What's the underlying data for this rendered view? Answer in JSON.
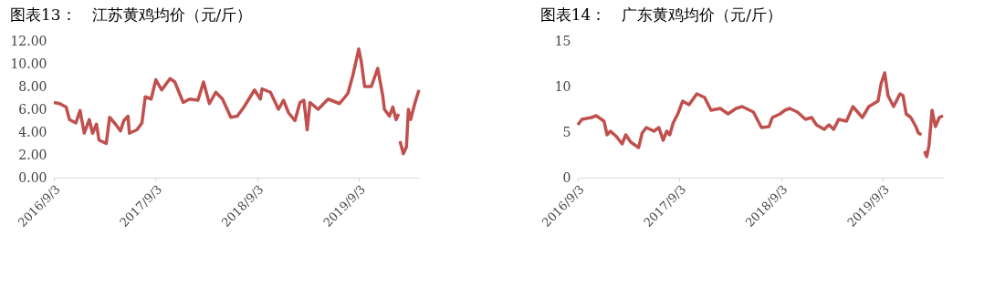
{
  "chart_data": [
    {
      "type": "line",
      "title": "图表13：　江苏黄鸡均价（元/斤）",
      "x": [
        "2016-09-03",
        "2016-09-24",
        "2016-10-17",
        "2016-10-29",
        "2016-11-21",
        "2016-12-06",
        "2016-12-21",
        "2017-01-08",
        "2017-01-20",
        "2017-02-03",
        "2017-02-12",
        "2017-03-10",
        "2017-03-22",
        "2017-04-12",
        "2017-04-30",
        "2017-05-12",
        "2017-05-27",
        "2017-06-01",
        "2017-06-28",
        "2017-07-16",
        "2017-07-28",
        "2017-08-18",
        "2017-09-04",
        "2017-09-25",
        "2017-10-25",
        "2017-11-11",
        "2017-12-11",
        "2018-01-03",
        "2018-02-02",
        "2018-02-22",
        "2018-03-15",
        "2018-04-07",
        "2018-05-01",
        "2018-05-31",
        "2018-06-23",
        "2018-07-17",
        "2018-08-24",
        "2018-09-14",
        "2018-09-20",
        "2018-10-20",
        "2018-11-18",
        "2018-12-06",
        "2018-12-24",
        "2019-01-16",
        "2019-02-03",
        "2019-02-17",
        "2019-03-01",
        "2019-03-11",
        "2019-04-09",
        "2019-05-15",
        "2019-06-25",
        "2019-07-25",
        "2019-08-12",
        "2019-09-02",
        "2019-09-11",
        "2019-09-23",
        "2019-10-17",
        "2019-11-09",
        "2019-11-27",
        "2019-12-03",
        "2019-12-21",
        "2020-01-02",
        "2020-01-14",
        "2020-01-23",
        "2020-01-25",
        "2020-01-28",
        "2020-02-09",
        "2020-02-20",
        "2020-02-27",
        "2020-03-06",
        "2020-03-22",
        "2020-04-05"
      ],
      "series": [
        {
          "color": "#c0504d",
          "values": [
            6.6,
            6.5,
            6.2,
            5.1,
            4.8,
            5.9,
            3.9,
            5.1,
            3.9,
            4.7,
            3.3,
            3.0,
            5.3,
            4.7,
            4.1,
            5.0,
            5.4,
            3.9,
            4.2,
            4.8,
            7.1,
            6.9,
            8.6,
            7.7,
            8.7,
            8.4,
            6.6,
            6.9,
            6.8,
            8.4,
            6.5,
            7.5,
            6.9,
            5.3,
            5.4,
            6.2,
            7.7,
            6.9,
            7.8,
            7.5,
            6.0,
            6.8,
            5.7,
            5.0,
            6.6,
            6.8,
            4.2,
            6.6,
            6.0,
            6.9,
            6.5,
            7.4,
            9.0,
            11.3,
            10.2,
            8.0,
            8.0,
            9.6,
            7.2,
            6.0,
            5.4,
            6.2,
            5.1,
            5.6,
            null,
            3.2,
            2.1,
            2.7,
            6.0,
            5.1,
            6.6,
            7.7
          ]
        }
      ],
      "xlim": [
        "2016-09-03",
        "2020-04-05"
      ],
      "xticks": [
        {
          "value": "2016-09-03",
          "label": "2016/9/3"
        },
        {
          "value": "2017-09-03",
          "label": "2017/9/3"
        },
        {
          "value": "2018-09-03",
          "label": "2018/9/3"
        },
        {
          "value": "2019-09-03",
          "label": "2019/9/3"
        }
      ],
      "ylim": [
        0,
        12
      ],
      "yticks": [
        {
          "value": 0,
          "label": "0.00"
        },
        {
          "value": 2,
          "label": "2.00"
        },
        {
          "value": 4,
          "label": "4.00"
        },
        {
          "value": 6,
          "label": "6.00"
        },
        {
          "value": 8,
          "label": "8.00"
        },
        {
          "value": 10,
          "label": "10.00"
        },
        {
          "value": 12,
          "label": "12.00"
        }
      ],
      "grid": false,
      "legend": false,
      "line_style": "solid"
    },
    {
      "type": "line",
      "title": "图表14：　广东黄鸡均价（元/斤）",
      "x": [
        "2016-09-03",
        "2016-09-18",
        "2016-10-22",
        "2016-11-08",
        "2016-12-06",
        "2016-12-17",
        "2016-12-29",
        "2017-01-20",
        "2017-02-09",
        "2017-02-22",
        "2017-03-12",
        "2017-04-09",
        "2017-04-22",
        "2017-05-07",
        "2017-06-03",
        "2017-06-21",
        "2017-07-06",
        "2017-07-19",
        "2017-07-30",
        "2017-08-11",
        "2017-08-28",
        "2017-09-14",
        "2017-10-07",
        "2017-11-04",
        "2017-12-02",
        "2017-12-25",
        "2018-01-27",
        "2018-02-24",
        "2018-03-25",
        "2018-04-16",
        "2018-05-26",
        "2018-06-24",
        "2018-07-21",
        "2018-08-02",
        "2018-08-30",
        "2018-09-16",
        "2018-10-03",
        "2018-10-31",
        "2018-11-29",
        "2018-12-21",
        "2019-01-07",
        "2019-02-04",
        "2019-02-21",
        "2019-03-10",
        "2019-03-28",
        "2019-04-25",
        "2019-05-18",
        "2019-06-21",
        "2019-07-14",
        "2019-08-16",
        "2019-08-27",
        "2019-09-09",
        "2019-09-21",
        "2019-10-11",
        "2019-11-03",
        "2019-11-14",
        "2019-11-25",
        "2019-12-12",
        "2019-12-30",
        "2020-01-08",
        "2020-01-19",
        "2020-01-25",
        "2020-01-30",
        "2020-02-07",
        "2020-02-15",
        "2020-02-26",
        "2020-03-09",
        "2020-03-23",
        "2020-04-05"
      ],
      "series": [
        {
          "color": "#c0504d",
          "values": [
            5.8,
            6.4,
            6.6,
            6.8,
            6.2,
            4.7,
            5.1,
            4.5,
            3.7,
            4.7,
            3.9,
            3.3,
            4.9,
            5.5,
            5.1,
            5.5,
            4.1,
            5.1,
            4.7,
            6.0,
            7.0,
            8.4,
            8.0,
            9.2,
            8.8,
            7.4,
            7.6,
            7.0,
            7.6,
            7.8,
            7.2,
            5.5,
            5.6,
            6.6,
            7.0,
            7.4,
            7.6,
            7.2,
            6.4,
            6.6,
            5.8,
            5.3,
            5.8,
            5.3,
            6.4,
            6.2,
            7.8,
            6.6,
            7.8,
            8.4,
            10.3,
            11.5,
            9.0,
            7.8,
            9.2,
            9.0,
            7.0,
            6.6,
            5.6,
            4.9,
            4.7,
            null,
            2.9,
            2.3,
            3.5,
            7.4,
            5.6,
            6.6,
            6.8
          ]
        }
      ],
      "xlim": [
        "2016-09-03",
        "2020-04-05"
      ],
      "xticks": [
        {
          "value": "2016-09-03",
          "label": "2016/9/3"
        },
        {
          "value": "2017-09-03",
          "label": "2017/9/3"
        },
        {
          "value": "2018-09-03",
          "label": "2018/9/3"
        },
        {
          "value": "2019-09-03",
          "label": "2019/9/3"
        }
      ],
      "ylim": [
        0,
        15
      ],
      "yticks": [
        0,
        5,
        10,
        15
      ],
      "grid": false,
      "legend": false,
      "line_style": "solid"
    }
  ]
}
